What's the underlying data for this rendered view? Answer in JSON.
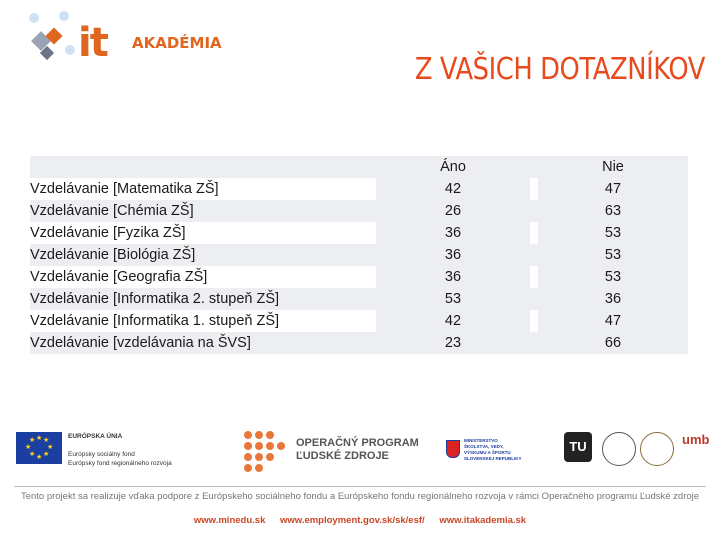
{
  "header": {
    "logo_it": "it",
    "logo_akademia": "AKADÉMIA",
    "title": "Z VAŠICH DOTAZNÍKOV"
  },
  "table": {
    "columns": [
      "",
      "Áno",
      "Nie"
    ],
    "rows": [
      {
        "label": "Vzdelávanie [Matematika ZŠ]",
        "yes": "42",
        "no": "47"
      },
      {
        "label": "Vzdelávanie [Chémia ZŠ]",
        "yes": "26",
        "no": "63"
      },
      {
        "label": "Vzdelávanie [Fyzika ZŠ]",
        "yes": "36",
        "no": "53"
      },
      {
        "label": "Vzdelávanie [Biológia ZŠ]",
        "yes": "36",
        "no": "53"
      },
      {
        "label": "Vzdelávanie [Geografia ZŠ]",
        "yes": "36",
        "no": "53"
      },
      {
        "label": "Vzdelávanie [Informatika 2. stupeň ZŠ]",
        "yes": "53",
        "no": "36"
      },
      {
        "label": "Vzdelávanie [Informatika 1. stupeň ZŠ]",
        "yes": "42",
        "no": "47"
      },
      {
        "label": "Vzdelávanie [vzdelávania na ŠVS]",
        "yes": "23",
        "no": "66"
      }
    ]
  },
  "footer": {
    "eu_title": "EURÓPSKA ÚNIA",
    "eu_fund1": "Európsky sociálny fond",
    "eu_fund2": "Európsky fond regionálneho rozvoja",
    "op_line1": "OPERAČNÝ PROGRAM",
    "op_line2": "ĽUDSKÉ ZDROJE",
    "ministry_line1": "MINISTERSTVO",
    "ministry_line2": "ŠKOLSTVA, VEDY,",
    "ministry_line3": "VÝSKUMU A ŠPORTU",
    "ministry_line4": "SLOVENSKEJ REPUBLIKY",
    "tu_logo": "TU",
    "umb_logo": "umb",
    "sentence": "Tento projekt sa realizuje vďaka podpore z Európskeho sociálneho fondu a Európskeho fondu regionálneho rozvoja v rámci Operačného programu Ľudské zdroje",
    "links": [
      "www.minedu.sk",
      "www.employment.gov.sk/sk/esf/",
      "www.itakademia.sk"
    ]
  },
  "colors": {
    "accent": "#e8491d",
    "row_shade": "#eceef2",
    "eu_blue": "#1b3fa0"
  }
}
